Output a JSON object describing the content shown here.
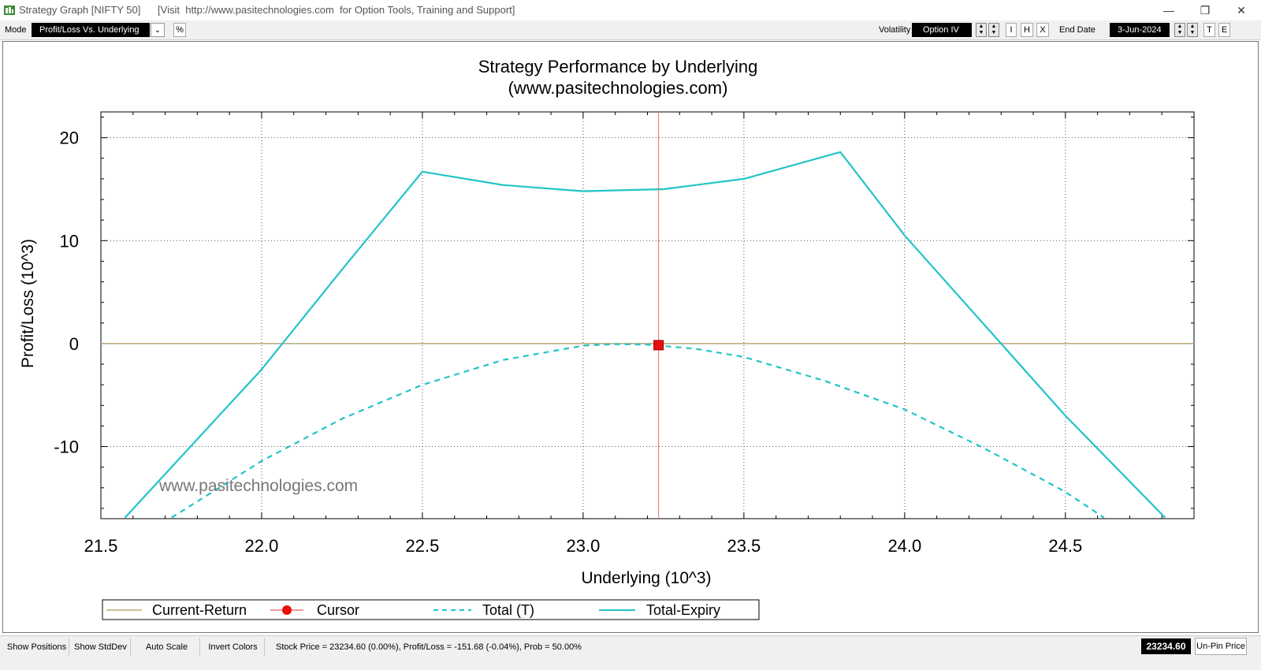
{
  "window": {
    "title": "Strategy Graph [NIFTY 50]      [Visit  http://www.pasitechnologies.com  for Option Tools, Training and Support]",
    "controls": {
      "minimize": "—",
      "restore": "❐",
      "close": "✕"
    }
  },
  "toolbar": {
    "mode_label": "Mode",
    "mode_value": "Profit/Loss Vs. Underlying",
    "percent_button": "%",
    "volatility_label": "Volatility",
    "volatility_value": "Option IV",
    "i_button": "I",
    "h_button": "H",
    "x_button": "X",
    "end_date_label": "End Date",
    "end_date_value": "3-Jun-2024",
    "t_button": "T",
    "e_button": "E"
  },
  "chart_data": {
    "type": "line",
    "title": "Strategy Performance by Underlying",
    "subtitle": "(www.pasitechnologies.com)",
    "watermark": "www.pasitechnologies.com",
    "xlabel": "Underlying (10^3)",
    "ylabel": "Profit/Loss (10^3)",
    "xlim": [
      21.5,
      24.9
    ],
    "ylim": [
      -17,
      22.5
    ],
    "xticks": [
      "21.5",
      "22.0",
      "22.5",
      "23.0",
      "23.5",
      "24.0",
      "24.5"
    ],
    "xtick_values": [
      21.5,
      22.0,
      22.5,
      23.0,
      23.5,
      24.0,
      24.5
    ],
    "yticks": [
      "20",
      "10",
      "0",
      "-10"
    ],
    "ytick_values": [
      20,
      10,
      0,
      -10
    ],
    "grid": true,
    "cursor_x": 23.2346,
    "cursor_y": -0.15,
    "series": [
      {
        "name": "Current-Return",
        "style": "solid",
        "color": "#b8a878",
        "x": [
          21.5,
          24.9
        ],
        "y": [
          0,
          0
        ]
      },
      {
        "name": "Total (T)",
        "style": "dashed",
        "color": "#22c4c8",
        "x": [
          21.72,
          22.0,
          22.25,
          22.5,
          22.75,
          23.0,
          23.1,
          23.2,
          23.35,
          23.5,
          23.75,
          24.0,
          24.25,
          24.5,
          24.62
        ],
        "y": [
          -16.9,
          -11.4,
          -7.3,
          -4.0,
          -1.6,
          -0.2,
          -0.05,
          -0.1,
          -0.5,
          -1.3,
          -3.6,
          -6.4,
          -10.2,
          -14.4,
          -16.9
        ]
      },
      {
        "name": "Total-Expiry",
        "style": "solid",
        "color": "#22c4c8",
        "x": [
          21.575,
          22.0,
          22.25,
          22.5,
          22.75,
          23.0,
          23.25,
          23.5,
          23.8,
          24.0,
          24.3,
          24.5,
          24.81
        ],
        "y": [
          -16.9,
          -2.5,
          7.2,
          16.7,
          15.4,
          14.8,
          15.0,
          16.0,
          18.6,
          10.5,
          0,
          -7.0,
          -16.9
        ]
      }
    ],
    "legend": [
      "Current-Return",
      "Cursor",
      "Total (T)",
      "Total-Expiry"
    ],
    "legend_position": "bottom"
  },
  "statusbar": {
    "show_positions": "Show Positions",
    "show_stddev": "Show StdDev",
    "auto_scale": "Auto Scale",
    "invert_colors": "Invert Colors",
    "info": "Stock Price = 23234.60 (0.00%), Profit/Loss = -151.68 (-0.04%), Prob = 50.00%",
    "price": "23234.60",
    "unpin": "Un-Pin Price"
  }
}
